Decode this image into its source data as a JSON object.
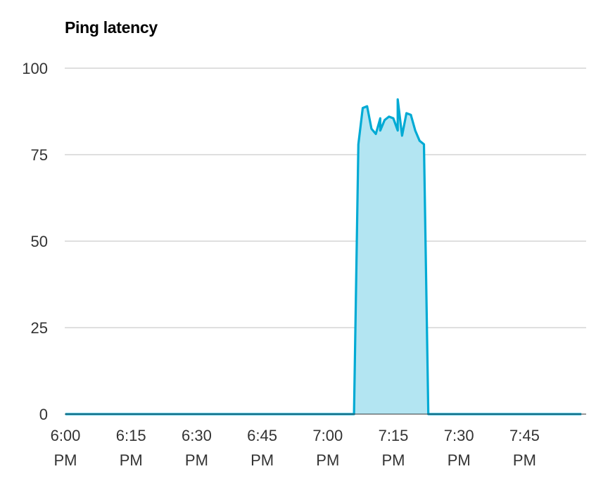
{
  "chart_data": {
    "type": "area",
    "title": "Ping latency",
    "xlabel": "",
    "ylabel": "",
    "ylim": [
      0,
      100
    ],
    "yticks": [
      0,
      25,
      50,
      75,
      100
    ],
    "grid": true,
    "xlim": [
      "6:00 PM",
      "7:58 PM"
    ],
    "xticks": [
      {
        "time": "6:00 PM",
        "lines": [
          "6:00",
          "PM"
        ]
      },
      {
        "time": "6:15 PM",
        "lines": [
          "6:15",
          "PM"
        ]
      },
      {
        "time": "6:30 PM",
        "lines": [
          "6:30",
          "PM"
        ]
      },
      {
        "time": "6:45 PM",
        "lines": [
          "6:45",
          "PM"
        ]
      },
      {
        "time": "7:00 PM",
        "lines": [
          "7:00",
          "PM"
        ]
      },
      {
        "time": "7:15 PM",
        "lines": [
          "7:15",
          "PM"
        ]
      },
      {
        "time": "7:30 PM",
        "lines": [
          "7:30",
          "PM"
        ]
      },
      {
        "time": "7:45 PM",
        "lines": [
          "7:45",
          "PM"
        ]
      }
    ],
    "series": [
      {
        "color": "#00aad4",
        "fill": "#b3e5f2",
        "x": [
          "6:00 PM",
          "7:06 PM",
          "7:07 PM",
          "7:08 PM",
          "7:09 PM",
          "7:10 PM",
          "7:11 PM",
          "7:12 PM",
          "7:12 PM",
          "7:13 PM",
          "7:14 PM",
          "7:15 PM",
          "7:16 PM",
          "7:16 PM",
          "7:17 PM",
          "7:18 PM",
          "7:18 PM",
          "7:19 PM",
          "7:20 PM",
          "7:21 PM",
          "7:22 PM",
          "7:23 PM",
          "7:24 PM",
          "7:58 PM"
        ],
        "y": [
          0,
          0,
          78,
          88.5,
          89,
          82.5,
          81,
          85.5,
          82,
          85,
          86,
          85.5,
          82,
          91,
          80.5,
          87,
          87,
          86.5,
          82,
          79,
          78,
          0,
          0,
          0
        ]
      }
    ]
  }
}
